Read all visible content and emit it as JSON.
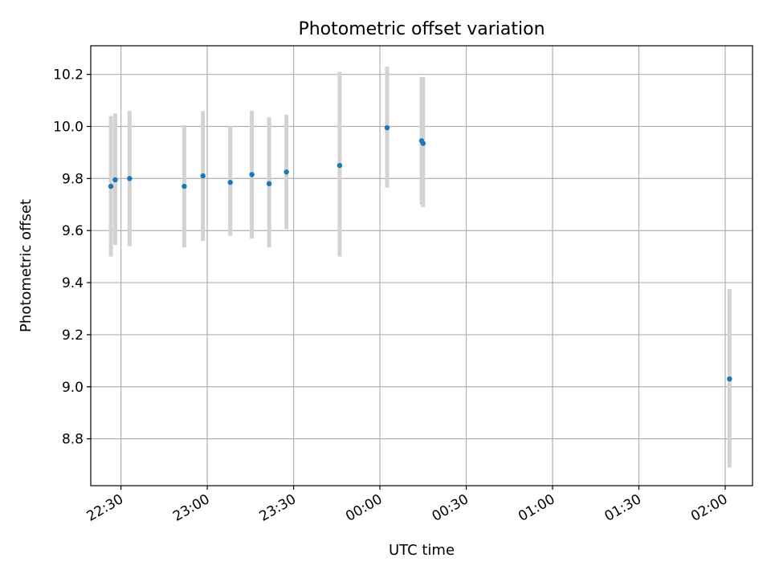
{
  "chart_data": {
    "type": "scatter",
    "title": "Photometric offset variation",
    "xlabel": "UTC time",
    "ylabel": "Photometric offset",
    "grid": true,
    "legend": "none",
    "xlim": [
      "22:19:30",
      "02:09:30"
    ],
    "ylim": [
      8.62,
      10.31
    ],
    "x_ticks": [
      "22:30",
      "23:00",
      "23:30",
      "00:00",
      "00:30",
      "01:00",
      "01:30",
      "02:00"
    ],
    "y_ticks": [
      "8.8",
      "9.0",
      "9.2",
      "9.4",
      "9.6",
      "9.8",
      "10.0",
      "10.2"
    ],
    "colors": {
      "marker": "#1f77b4",
      "errorbar": "#d3d3d3",
      "grid": "#b0b0b0"
    },
    "points": [
      {
        "time": "22:26:30",
        "value": 9.77,
        "low": 9.5,
        "high": 10.04
      },
      {
        "time": "22:28:00",
        "value": 9.795,
        "low": 9.545,
        "high": 10.05
      },
      {
        "time": "22:33:00",
        "value": 9.8,
        "low": 9.54,
        "high": 10.06
      },
      {
        "time": "22:52:00",
        "value": 9.77,
        "low": 9.535,
        "high": 10.005
      },
      {
        "time": "22:58:30",
        "value": 9.81,
        "low": 9.56,
        "high": 10.06
      },
      {
        "time": "23:08:00",
        "value": 9.785,
        "low": 9.58,
        "high": 10.0
      },
      {
        "time": "23:15:30",
        "value": 9.815,
        "low": 9.57,
        "high": 10.06
      },
      {
        "time": "23:21:30",
        "value": 9.78,
        "low": 9.535,
        "high": 10.035
      },
      {
        "time": "23:27:30",
        "value": 9.825,
        "low": 9.605,
        "high": 10.045
      },
      {
        "time": "23:46:00",
        "value": 9.85,
        "low": 9.5,
        "high": 10.21
      },
      {
        "time": "00:02:30",
        "value": 9.995,
        "low": 9.765,
        "high": 10.23
      },
      {
        "time": "00:14:30",
        "value": 9.945,
        "low": 9.7,
        "high": 10.19
      },
      {
        "time": "00:15:00",
        "value": 9.935,
        "low": 9.69,
        "high": 10.19
      },
      {
        "time": "02:01:30",
        "value": 9.03,
        "low": 8.69,
        "high": 9.375
      }
    ]
  }
}
